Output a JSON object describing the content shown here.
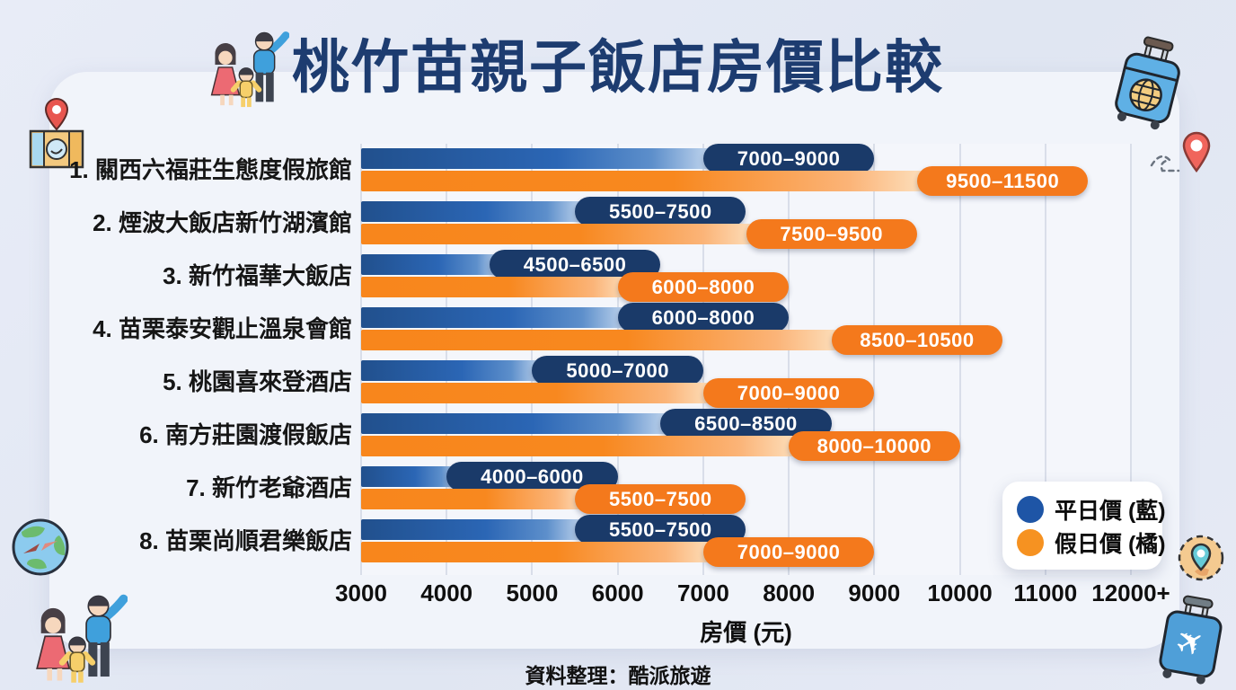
{
  "header": {
    "title": "桃竹苗親子飯店房價比較"
  },
  "legend": {
    "weekday_label": "平日價 (藍)",
    "holiday_label": "假日價 (橘)"
  },
  "footer": {
    "credit": "資料整理：酷派旅遊"
  },
  "chart_data": {
    "type": "bar",
    "orientation": "horizontal",
    "title": "桃竹苗親子飯店房價比較",
    "xlabel": "房價 (元)",
    "xlim": [
      3000,
      12000
    ],
    "x_ticks": [
      "3000",
      "4000",
      "5000",
      "6000",
      "7000",
      "8000",
      "9000",
      "10000",
      "11000",
      "12000+"
    ],
    "grid": true,
    "legend_position": "bottom-right",
    "categories": [
      "1. 關西六福莊生態度假旅館",
      "2. 煙波大飯店新竹湖濱館",
      "3. 新竹福華大飯店",
      "4. 苗栗泰安觀止溫泉會館",
      "5. 桃園喜來登酒店",
      "6. 南方莊園渡假飯店",
      "7. 新竹老爺酒店",
      "8. 苗栗尚順君樂飯店"
    ],
    "series": [
      {
        "name": "平日價 (藍)",
        "color": "#1a3a69",
        "ranges": [
          [
            7000,
            9000
          ],
          [
            5500,
            7500
          ],
          [
            4500,
            6500
          ],
          [
            6000,
            8000
          ],
          [
            5000,
            7000
          ],
          [
            6500,
            8500
          ],
          [
            4000,
            6000
          ],
          [
            5500,
            7500
          ]
        ]
      },
      {
        "name": "假日價 (橘)",
        "color": "#f4791c",
        "ranges": [
          [
            9500,
            11500
          ],
          [
            7500,
            9500
          ],
          [
            6000,
            8000
          ],
          [
            8500,
            10500
          ],
          [
            7000,
            9000
          ],
          [
            8000,
            10000
          ],
          [
            5500,
            7500
          ],
          [
            7000,
            9000
          ]
        ]
      }
    ]
  },
  "colors": {
    "title": "#1d3c70",
    "weekday_pill": "#1a3a69",
    "holiday_pill": "#f4791c",
    "weekday_bar_start": "#21508d",
    "holiday_bar_start": "#f8861c",
    "page_background": "#e3e9f4",
    "panel_background": "#f1f4fa",
    "gridline": "#d9dee9"
  },
  "icons": [
    "family-icon-title",
    "travel-suitcase-icon",
    "map-pin-map-icon",
    "location-pin-icon",
    "globe-compass-icon",
    "family-icon-bottom",
    "person-location-icon",
    "airplane-suitcase-icon"
  ]
}
